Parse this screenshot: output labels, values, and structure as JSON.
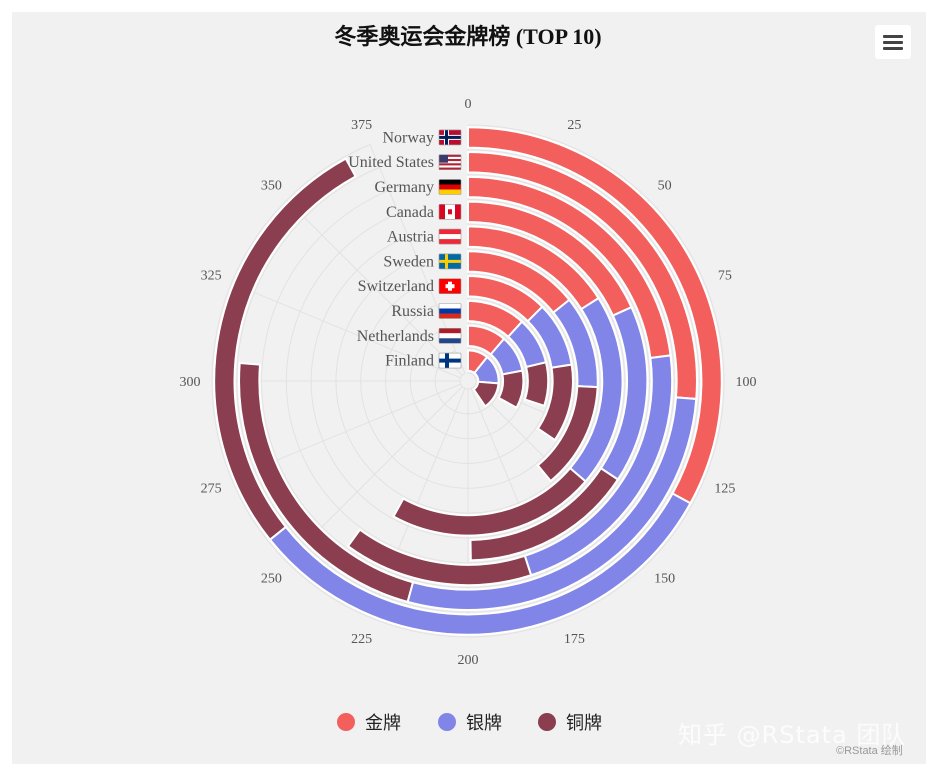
{
  "colors": {
    "gold": "#f25f5c",
    "silver": "#8185e8",
    "bronze": "#8a3e4f",
    "grid": "#e2e2e2",
    "text": "#555555"
  },
  "menu": {
    "icon": "hamburger-menu-icon"
  },
  "watermark": "知乎 @RStata 团队",
  "credit": "©RStata 绘制",
  "chart_data": {
    "type": "radial-stacked-bar",
    "title": "冬季奥运会金牌榜 (TOP 10)",
    "countries": [
      "Norway",
      "United States",
      "Germany",
      "Canada",
      "Austria",
      "Sweden",
      "Switzerland",
      "Russia",
      "Netherlands",
      "Finland"
    ],
    "flags": [
      "flag-norway-icon",
      "flag-united-states-icon",
      "flag-germany-icon",
      "flag-canada-icon",
      "flag-austria-icon",
      "flag-sweden-icon",
      "flag-switzerland-icon",
      "flag-russia-icon",
      "flag-netherlands-icon",
      "flag-finland-icon"
    ],
    "axis_ticks": [
      0,
      25,
      50,
      75,
      100,
      125,
      150,
      175,
      200,
      225,
      250,
      275,
      300,
      325,
      350,
      375
    ],
    "axis_max": 400,
    "series": [
      {
        "name": "金牌",
        "values": [
          132,
          105,
          92,
          73,
          64,
          57,
          50,
          47,
          45,
          43
        ]
      },
      {
        "name": "银牌",
        "values": [
          125,
          112,
          88,
          64,
          81,
          46,
          40,
          38,
          43,
          62
        ]
      },
      {
        "name": "铜牌",
        "values": [
          111,
          88,
          60,
          62,
          87,
          53,
          48,
          35,
          44,
          57
        ]
      }
    ],
    "legend_position": "bottom"
  }
}
